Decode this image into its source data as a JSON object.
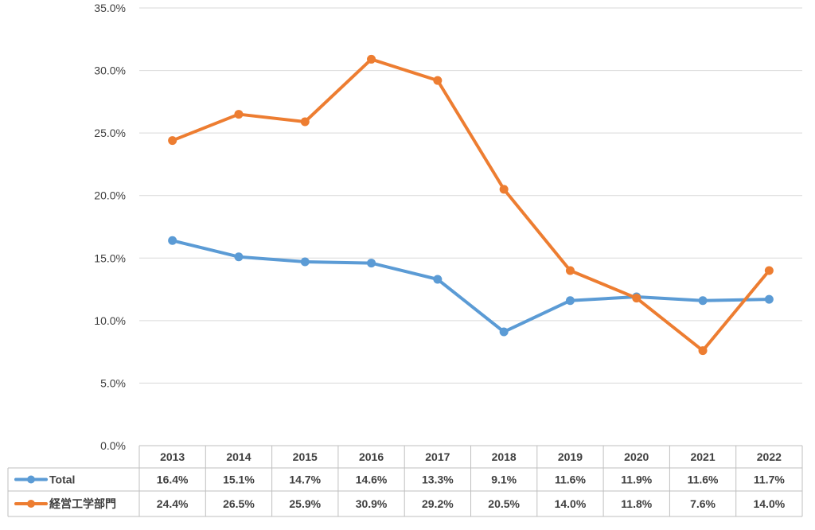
{
  "chart_data": {
    "type": "line",
    "categories": [
      "2013",
      "2014",
      "2015",
      "2016",
      "2017",
      "2018",
      "2019",
      "2020",
      "2021",
      "2022"
    ],
    "series": [
      {
        "name": "Total",
        "color": "#5b9bd5",
        "values": [
          16.4,
          15.1,
          14.7,
          14.6,
          13.3,
          9.1,
          11.6,
          11.9,
          11.6,
          11.7
        ],
        "labels": [
          "16.4%",
          "15.1%",
          "14.7%",
          "14.6%",
          "13.3%",
          "9.1%",
          "11.6%",
          "11.9%",
          "11.6%",
          "11.7%"
        ]
      },
      {
        "name": "経営工学部門",
        "color": "#ed7d31",
        "values": [
          24.4,
          26.5,
          25.9,
          30.9,
          29.2,
          20.5,
          14.0,
          11.8,
          7.6,
          14.0
        ],
        "labels": [
          "24.4%",
          "26.5%",
          "25.9%",
          "30.9%",
          "29.2%",
          "20.5%",
          "14.0%",
          "11.8%",
          "7.6%",
          "14.0%"
        ]
      }
    ],
    "ylim": [
      0,
      35
    ],
    "yticks": [
      "0.0%",
      "5.0%",
      "10.0%",
      "15.0%",
      "20.0%",
      "25.0%",
      "30.0%",
      "35.0%"
    ],
    "grid": true,
    "legend": "data-table-left",
    "data_table": true
  }
}
